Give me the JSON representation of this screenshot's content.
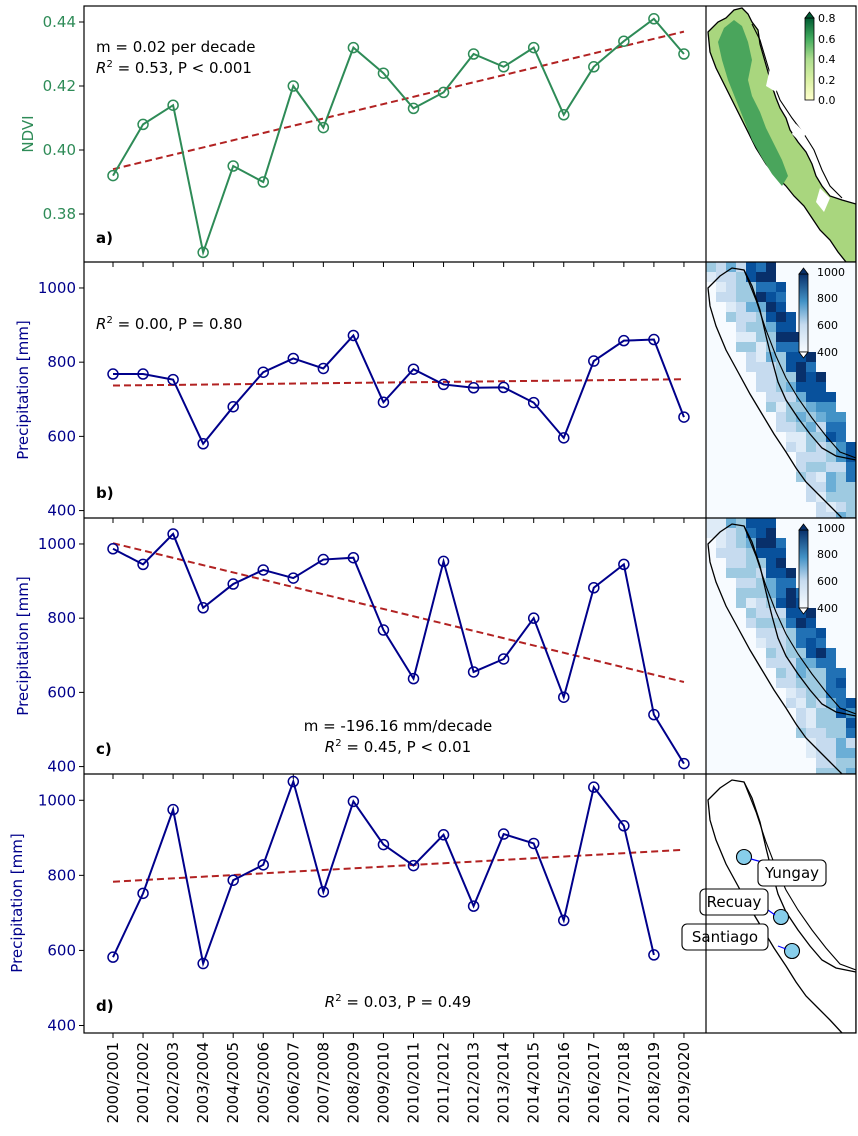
{
  "chart_data": [
    {
      "type": "line",
      "panel_label": "a)",
      "ylabel": "NDVI",
      "ylim": [
        0.365,
        0.445
      ],
      "yticks": [
        "0.38",
        "0.40",
        "0.42",
        "0.44"
      ],
      "ytick_values": [
        0.38,
        0.4,
        0.42,
        0.44
      ],
      "color": "#2e8b57",
      "categories": [
        "2000/2001",
        "2001/2002",
        "2002/2003",
        "2003/2004",
        "2004/2005",
        "2005/2006",
        "2006/2007",
        "2007/2008",
        "2008/2009",
        "2009/2010",
        "2010/2011",
        "2011/2012",
        "2012/2013",
        "2013/2014",
        "2014/2015",
        "2015/2016",
        "2016/2017",
        "2017/2018",
        "2018/2019",
        "2019/2020"
      ],
      "values": [
        0.392,
        0.408,
        0.414,
        0.368,
        0.395,
        0.39,
        0.42,
        0.407,
        0.432,
        0.424,
        0.413,
        0.418,
        0.43,
        0.426,
        0.432,
        0.411,
        0.426,
        0.434,
        0.441,
        0.43
      ],
      "trend": [
        0.394,
        0.437
      ],
      "annotation_lines": [
        "m = 0.02 per decade",
        "R² = 0.53, P < 0.001"
      ],
      "map": {
        "colorbar_ticks": [
          "0.8",
          "0.6",
          "0.4",
          "0.2",
          "0.0"
        ]
      }
    },
    {
      "type": "line",
      "panel_label": "b)",
      "ylabel": "Precipitation [mm]",
      "ylim": [
        380,
        1070
      ],
      "yticks": [
        "400",
        "600",
        "800",
        "1000"
      ],
      "ytick_values": [
        400,
        600,
        800,
        1000
      ],
      "color": "#00008b",
      "categories": [
        "2000/2001",
        "2001/2002",
        "2002/2003",
        "2003/2004",
        "2004/2005",
        "2005/2006",
        "2006/2007",
        "2007/2008",
        "2008/2009",
        "2009/2010",
        "2010/2011",
        "2011/2012",
        "2012/2013",
        "2013/2014",
        "2014/2015",
        "2015/2016",
        "2016/2017",
        "2017/2018",
        "2018/2019",
        "2019/2020"
      ],
      "values": [
        768,
        768,
        753,
        580,
        680,
        773,
        810,
        783,
        872,
        692,
        781,
        740,
        731,
        732,
        691,
        596,
        803,
        858,
        861,
        652
      ],
      "trend": [
        737,
        754
      ],
      "annotation_lines": [
        "R² = 0.00, P = 0.80"
      ],
      "map": {
        "colorbar_ticks": [
          "1000",
          "800",
          "600",
          "400"
        ]
      }
    },
    {
      "type": "line",
      "panel_label": "c)",
      "ylabel": "Precipitation [mm]",
      "ylim": [
        380,
        1070
      ],
      "yticks": [
        "400",
        "600",
        "800",
        "1000"
      ],
      "ytick_values": [
        400,
        600,
        800,
        1000
      ],
      "color": "#00008b",
      "categories": [
        "2000/2001",
        "2001/2002",
        "2002/2003",
        "2003/2004",
        "2004/2005",
        "2005/2006",
        "2006/2007",
        "2007/2008",
        "2008/2009",
        "2009/2010",
        "2010/2011",
        "2011/2012",
        "2012/2013",
        "2013/2014",
        "2014/2015",
        "2015/2016",
        "2016/2017",
        "2017/2018",
        "2018/2019",
        "2019/2020"
      ],
      "values": [
        987,
        945,
        1027,
        828,
        892,
        930,
        908,
        958,
        963,
        768,
        637,
        953,
        655,
        690,
        800,
        587,
        882,
        945,
        540,
        408
      ],
      "trend": [
        1002,
        628
      ],
      "annotation_lines": [
        "m = -196.16 mm/decade",
        "R² = 0.45, P < 0.01"
      ],
      "map": {
        "colorbar_ticks": [
          "1000",
          "800",
          "600",
          "400"
        ]
      }
    },
    {
      "type": "line",
      "panel_label": "d)",
      "ylabel": "Precipitation [mm]",
      "ylim": [
        380,
        1070
      ],
      "yticks": [
        "400",
        "600",
        "800",
        "1000"
      ],
      "ytick_values": [
        400,
        600,
        800,
        1000
      ],
      "color": "#00008b",
      "categories": [
        "2000/2001",
        "2001/2002",
        "2002/2003",
        "2003/2004",
        "2004/2005",
        "2005/2006",
        "2006/2007",
        "2007/2008",
        "2008/2009",
        "2009/2010",
        "2010/2011",
        "2011/2012",
        "2012/2013",
        "2013/2014",
        "2014/2015",
        "2015/2016",
        "2016/2017",
        "2017/2018",
        "2018/2019",
        "2019/2020"
      ],
      "values": [
        582,
        752,
        975,
        565,
        787,
        828,
        1050,
        756,
        997,
        882,
        826,
        908,
        718,
        910,
        885,
        680,
        1035,
        932,
        588,
        null
      ],
      "trend": [
        783,
        868
      ],
      "annotation_lines": [
        "R² = 0.03, P = 0.49"
      ],
      "map": {
        "stations": [
          "Yungay",
          "Recuay",
          "Santiago"
        ]
      }
    }
  ]
}
